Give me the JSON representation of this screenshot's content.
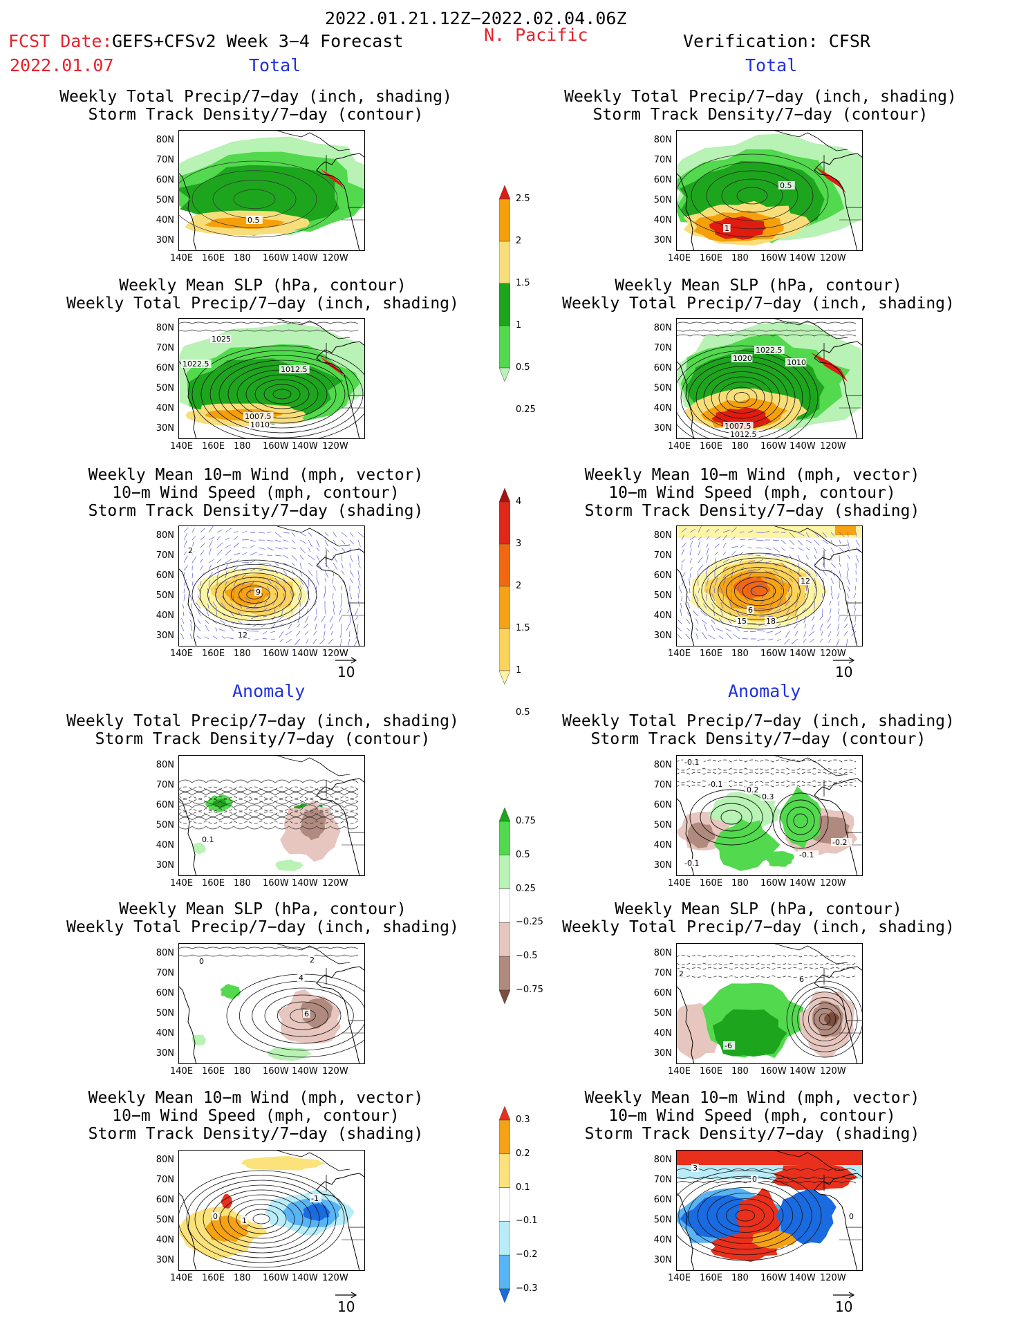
{
  "header": {
    "date_range": "2022.01.21.12Z−2022.02.04.06Z",
    "fcst_label": "FCST Date:",
    "fcst_source": "GEFS+CFSv2 Week 3−4 Forecast",
    "fcst_date": "2022.01.07",
    "region": "N. Pacific",
    "verification": "Verification: CFSR"
  },
  "sections": {
    "total": "Total",
    "anomaly": "Anomaly"
  },
  "axes": {
    "lat_ticks": [
      "80N",
      "70N",
      "60N",
      "50N",
      "40N",
      "30N"
    ],
    "lon_ticks": [
      "140E",
      "160E",
      "180",
      "160W",
      "140W",
      "120W"
    ]
  },
  "vector_ref": "10",
  "panel_titles": {
    "precip_storm": [
      "Weekly Total Precip/7−day (inch, shading)",
      "Storm Track Density/7−day (contour)"
    ],
    "slp_precip": [
      "Weekly Mean SLP (hPa, contour)",
      "Weekly Total Precip/7−day (inch, shading)"
    ],
    "wind_storm": [
      "Weekly Mean 10−m Wind (mph, vector)",
      "10−m Wind Speed (mph, contour)",
      "Storm Track Density/7−day (shading)"
    ]
  },
  "colorbars": {
    "total_precip": {
      "labels": [
        "2.5",
        "2",
        "1.5",
        "1",
        "0.5",
        "0.25"
      ],
      "colors": [
        "#e01c10",
        "#f5a00a",
        "#f8de7a",
        "#1ea51e",
        "#52d94e",
        "#b8f2b4"
      ]
    },
    "total_storm": {
      "labels": [
        "4",
        "3",
        "2",
        "1.5",
        "1",
        "0.5"
      ],
      "colors": [
        "#a4130e",
        "#e1261a",
        "#f26812",
        "#f6a215",
        "#fbd25a",
        "#fdf5a6"
      ]
    },
    "anom_precip": {
      "labels": [
        "0.75",
        "0.5",
        "0.25",
        "−0.25",
        "−0.5",
        "−0.75"
      ],
      "colors": [
        "#1ea51e",
        "#52d94e",
        "#b8f2b4",
        "#ffffff",
        "#e6c6be",
        "#b08a7e",
        "#7a4e3e"
      ]
    },
    "anom_storm": {
      "labels": [
        "0.3",
        "0.2",
        "0.1",
        "−0.1",
        "−0.2",
        "−0.3"
      ],
      "colors": [
        "#e8301c",
        "#f6a215",
        "#fbe27a",
        "#ffffff",
        "#b8ecf8",
        "#58b4f4",
        "#1a6ae0"
      ]
    }
  },
  "map_labels": {
    "l1": [
      "0.5"
    ],
    "r1": [
      "0.5",
      "1"
    ],
    "l2": [
      "1025",
      "1022.5",
      "1012.5",
      "1007.5",
      "1010"
    ],
    "r2": [
      "1022.5",
      "1020",
      "1010",
      "1007.5",
      "1012.5"
    ],
    "l3": [
      "2",
      "9",
      "12"
    ],
    "r3": [
      "12",
      "6",
      "15",
      "18"
    ],
    "l4": [
      "0.1"
    ],
    "r4": [
      "-0.1",
      "-0.1",
      "0.2",
      "0.3",
      "-0.2",
      "-0.1",
      "-0.1"
    ],
    "l5": [
      "0",
      "2",
      "4",
      "6"
    ],
    "r5": [
      "2",
      "6",
      "-6"
    ],
    "l6": [
      "0",
      "-1",
      "1"
    ],
    "r6": [
      "3",
      "0",
      "0"
    ]
  }
}
